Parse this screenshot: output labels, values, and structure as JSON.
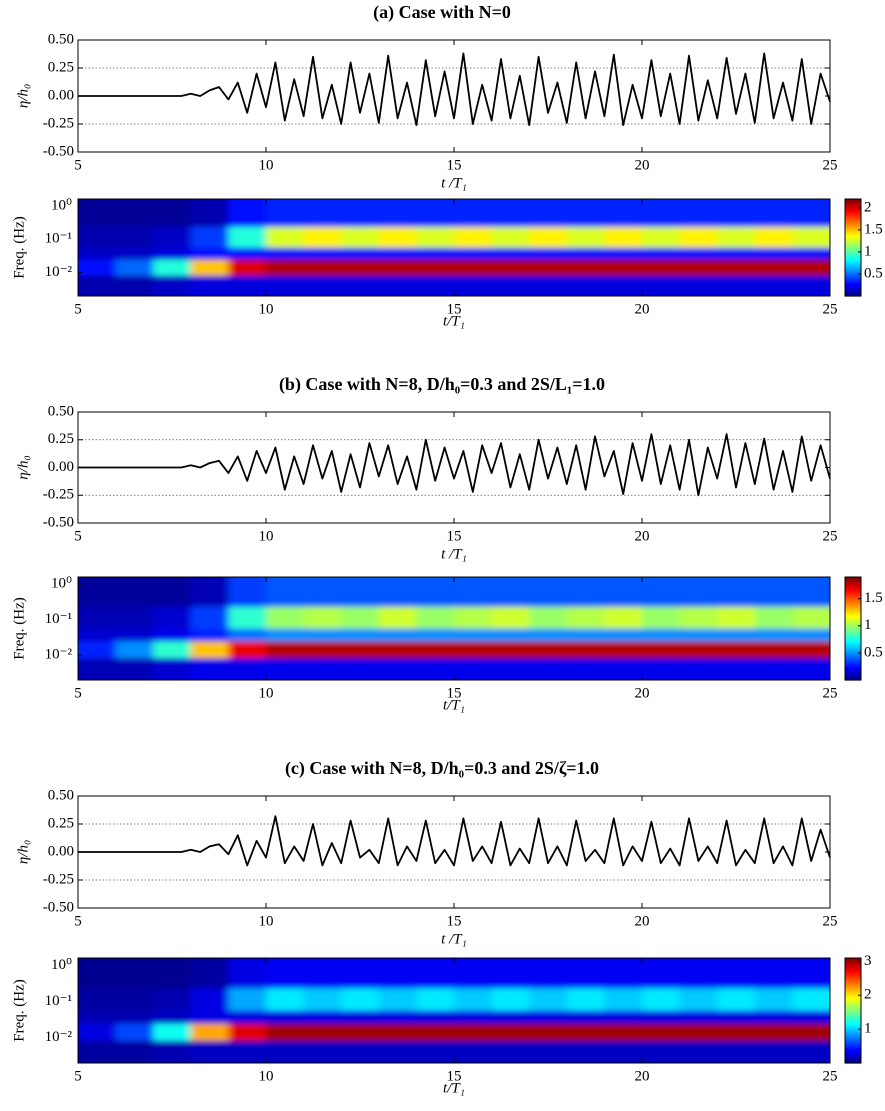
{
  "chart_data": [
    {
      "type": "line",
      "title": "(a)   Case with N=0",
      "ylabel": "η/h₀",
      "xlabel": "t /T₁",
      "color": "#000000",
      "x": [
        5,
        5.25,
        5.5,
        5.75,
        6,
        6.25,
        6.5,
        6.75,
        7,
        7.25,
        7.5,
        7.75,
        8,
        8.25,
        8.5,
        8.75,
        9,
        9.25,
        9.5,
        9.75,
        10,
        10.25,
        10.5,
        10.75,
        11,
        11.25,
        11.5,
        11.75,
        12,
        12.25,
        12.5,
        12.75,
        13,
        13.25,
        13.5,
        13.75,
        14,
        14.25,
        14.5,
        14.75,
        15,
        15.25,
        15.5,
        15.75,
        16,
        16.25,
        16.5,
        16.75,
        17,
        17.25,
        17.5,
        17.75,
        18,
        18.25,
        18.5,
        18.75,
        19,
        19.25,
        19.5,
        19.75,
        20,
        20.25,
        20.5,
        20.75,
        21,
        21.25,
        21.5,
        21.75,
        22,
        22.25,
        22.5,
        22.75,
        23,
        23.25,
        23.5,
        23.75,
        24,
        24.25,
        24.5,
        24.75,
        25
      ],
      "values": [
        0,
        0,
        0,
        0,
        0,
        0,
        0,
        0,
        0,
        0,
        0,
        0,
        0.02,
        0,
        0.05,
        0.08,
        -0.03,
        0.12,
        -0.15,
        0.2,
        -0.1,
        0.3,
        -0.22,
        0.15,
        -0.18,
        0.35,
        -0.2,
        0.1,
        -0.25,
        0.3,
        -0.15,
        0.2,
        -0.24,
        0.36,
        -0.2,
        0.12,
        -0.26,
        0.32,
        -0.18,
        0.22,
        -0.2,
        0.38,
        -0.25,
        0.1,
        -0.22,
        0.33,
        -0.2,
        0.18,
        -0.26,
        0.35,
        -0.15,
        0.12,
        -0.24,
        0.3,
        -0.2,
        0.22,
        -0.18,
        0.37,
        -0.26,
        0.1,
        -0.2,
        0.32,
        -0.18,
        0.2,
        -0.25,
        0.36,
        -0.22,
        0.14,
        -0.2,
        0.34,
        -0.16,
        0.2,
        -0.24,
        0.38,
        -0.2,
        0.12,
        -0.22,
        0.33,
        -0.25,
        0.2,
        -0.05
      ],
      "xlim": [
        5,
        25
      ],
      "xticks": [
        5,
        10,
        15,
        20,
        25
      ],
      "ylim": [
        -0.5,
        0.5
      ],
      "yticks": [
        {
          "value": 0.5,
          "label": "0.50"
        },
        {
          "value": 0.25,
          "label": "0.25"
        },
        {
          "value": 0,
          "label": "0.00"
        },
        {
          "value": -0.25,
          "label": "-0.25"
        },
        {
          "value": -0.5,
          "label": "-0.50"
        }
      ],
      "hlines": [
        0.25,
        -0.25
      ]
    },
    {
      "type": "heatmap",
      "ylabel": "Freq. (Hz)",
      "xlabel": "t/T₁",
      "colormap": "jet",
      "log_y": true,
      "x": [
        5.5,
        6.5,
        7.5,
        8.5,
        9.5,
        10.5,
        11.5,
        12.5,
        13.5,
        14.5,
        15.5,
        16.5,
        17.5,
        18.5,
        19.5,
        20.5,
        21.5,
        22.5,
        23.5,
        24.5
      ],
      "y": [
        0.6,
        0.09,
        0.035,
        0.017,
        0.004
      ],
      "values": [
        [
          0.05,
          0.05,
          0.05,
          0.1,
          0.3,
          0.35,
          0.35,
          0.35,
          0.35,
          0.35,
          0.35,
          0.35,
          0.35,
          0.35,
          0.35,
          0.35,
          0.35,
          0.35,
          0.35,
          0.35
        ],
        [
          0.1,
          0.1,
          0.15,
          0.4,
          0.9,
          1.3,
          1.4,
          1.3,
          1.4,
          1.3,
          1.4,
          1.3,
          1.4,
          1.3,
          1.4,
          1.3,
          1.4,
          1.3,
          1.4,
          1.3
        ],
        [
          0.15,
          0.15,
          0.2,
          0.3,
          0.3,
          0.3,
          0.3,
          0.3,
          0.3,
          0.3,
          0.3,
          0.3,
          0.3,
          0.3,
          0.3,
          0.3,
          0.3,
          0.3,
          0.3,
          0.3
        ],
        [
          0.3,
          0.5,
          0.9,
          1.5,
          2,
          2.1,
          2.1,
          2.1,
          2.1,
          2.1,
          2.1,
          2.1,
          2.1,
          2.1,
          2.1,
          2.1,
          2.1,
          2.1,
          2.1,
          2.1
        ],
        [
          0.1,
          0.1,
          0.15,
          0.2,
          0.2,
          0.2,
          0.2,
          0.2,
          0.2,
          0.2,
          0.2,
          0.2,
          0.2,
          0.2,
          0.2,
          0.2,
          0.2,
          0.2,
          0.2,
          0.2
        ]
      ],
      "xlim": [
        5,
        25
      ],
      "xticks": [
        5,
        10,
        15,
        20,
        25
      ],
      "ylim": [
        0.002,
        1.6
      ],
      "yticks": [
        {
          "value": 1,
          "label": "10⁰"
        },
        {
          "value": 0.1,
          "label": "10⁻¹"
        },
        {
          "value": 0.01,
          "label": "10⁻²"
        }
      ],
      "clim": [
        0,
        2.2
      ],
      "cticks": [
        0.5,
        1,
        1.5,
        2
      ]
    },
    {
      "type": "line",
      "title": "(b)   Case with N=8, D/h₀=0.3 and 2S/L₁=1.0",
      "ylabel": "η/h₀",
      "xlabel": "t /T₁",
      "color": "#000000",
      "x": [
        5,
        5.25,
        5.5,
        5.75,
        6,
        6.25,
        6.5,
        6.75,
        7,
        7.25,
        7.5,
        7.75,
        8,
        8.25,
        8.5,
        8.75,
        9,
        9.25,
        9.5,
        9.75,
        10,
        10.25,
        10.5,
        10.75,
        11,
        11.25,
        11.5,
        11.75,
        12,
        12.25,
        12.5,
        12.75,
        13,
        13.25,
        13.5,
        13.75,
        14,
        14.25,
        14.5,
        14.75,
        15,
        15.25,
        15.5,
        15.75,
        16,
        16.25,
        16.5,
        16.75,
        17,
        17.25,
        17.5,
        17.75,
        18,
        18.25,
        18.5,
        18.75,
        19,
        19.25,
        19.5,
        19.75,
        20,
        20.25,
        20.5,
        20.75,
        21,
        21.25,
        21.5,
        21.75,
        22,
        22.25,
        22.5,
        22.75,
        23,
        23.25,
        23.5,
        23.75,
        24,
        24.25,
        24.5,
        24.75,
        25
      ],
      "values": [
        0,
        0,
        0,
        0,
        0,
        0,
        0,
        0,
        0,
        0,
        0,
        0,
        0.02,
        0,
        0.04,
        0.06,
        -0.05,
        0.1,
        -0.12,
        0.15,
        -0.05,
        0.18,
        -0.2,
        0.1,
        -0.15,
        0.2,
        -0.1,
        0.15,
        -0.22,
        0.12,
        -0.18,
        0.22,
        -0.08,
        0.2,
        -0.15,
        0.1,
        -0.2,
        0.25,
        -0.12,
        0.18,
        -0.1,
        0.15,
        -0.22,
        0.2,
        -0.05,
        0.22,
        -0.18,
        0.12,
        -0.2,
        0.25,
        -0.1,
        0.18,
        -0.15,
        0.2,
        -0.2,
        0.28,
        -0.08,
        0.15,
        -0.24,
        0.22,
        -0.12,
        0.3,
        -0.15,
        0.2,
        -0.2,
        0.25,
        -0.25,
        0.18,
        -0.1,
        0.3,
        -0.18,
        0.22,
        -0.15,
        0.26,
        -0.2,
        0.15,
        -0.22,
        0.28,
        -0.12,
        0.2,
        -0.1
      ],
      "xlim": [
        5,
        25
      ],
      "xticks": [
        5,
        10,
        15,
        20,
        25
      ],
      "ylim": [
        -0.5,
        0.5
      ],
      "yticks": [
        {
          "value": 0.5,
          "label": "0.50"
        },
        {
          "value": 0.25,
          "label": "0.25"
        },
        {
          "value": 0,
          "label": "0.00"
        },
        {
          "value": -0.25,
          "label": "-0.25"
        },
        {
          "value": -0.5,
          "label": "-0.50"
        }
      ],
      "hlines": [
        0.25,
        -0.25
      ]
    },
    {
      "type": "heatmap",
      "ylabel": "Freq. (Hz)",
      "xlabel": "t/T₁",
      "colormap": "jet",
      "log_y": true,
      "x": [
        5.5,
        6.5,
        7.5,
        8.5,
        9.5,
        10.5,
        11.5,
        12.5,
        13.5,
        14.5,
        15.5,
        16.5,
        17.5,
        18.5,
        19.5,
        20.5,
        21.5,
        22.5,
        23.5,
        24.5
      ],
      "y": [
        0.6,
        0.09,
        0.035,
        0.017,
        0.004
      ],
      "values": [
        [
          0.05,
          0.05,
          0.05,
          0.1,
          0.35,
          0.4,
          0.4,
          0.4,
          0.4,
          0.4,
          0.4,
          0.4,
          0.4,
          0.4,
          0.4,
          0.4,
          0.4,
          0.4,
          0.4,
          0.4
        ],
        [
          0.1,
          0.1,
          0.15,
          0.35,
          0.8,
          1,
          1.05,
          1,
          1.1,
          1,
          1.05,
          1.1,
          1,
          1.05,
          1.1,
          1,
          1.05,
          1.1,
          1,
          1.05
        ],
        [
          0.15,
          0.15,
          0.2,
          0.3,
          0.45,
          0.5,
          0.5,
          0.5,
          0.5,
          0.5,
          0.5,
          0.5,
          0.5,
          0.5,
          0.5,
          0.5,
          0.5,
          0.5,
          0.5,
          0.5
        ],
        [
          0.3,
          0.5,
          0.8,
          1.3,
          1.7,
          1.8,
          1.8,
          1.8,
          1.8,
          1.8,
          1.8,
          1.8,
          1.8,
          1.8,
          1.8,
          1.8,
          1.8,
          1.8,
          1.8,
          1.8
        ],
        [
          0.1,
          0.1,
          0.15,
          0.2,
          0.2,
          0.2,
          0.2,
          0.2,
          0.2,
          0.2,
          0.2,
          0.2,
          0.2,
          0.2,
          0.2,
          0.2,
          0.2,
          0.2,
          0.2,
          0.2
        ]
      ],
      "xlim": [
        5,
        25
      ],
      "xticks": [
        5,
        10,
        15,
        20,
        25
      ],
      "ylim": [
        0.002,
        1.6
      ],
      "yticks": [
        {
          "value": 1,
          "label": "10⁰"
        },
        {
          "value": 0.1,
          "label": "10⁻¹"
        },
        {
          "value": 0.01,
          "label": "10⁻²"
        }
      ],
      "clim": [
        0,
        1.9
      ],
      "cticks": [
        0.5,
        1,
        1.5
      ]
    },
    {
      "type": "line",
      "title": "(c)   Case with N=8, D/h₀=0.3 and 2S/ζ=1.0",
      "ylabel": "η/h₀",
      "xlabel": "t /T₁",
      "color": "#000000",
      "x": [
        5,
        5.25,
        5.5,
        5.75,
        6,
        6.25,
        6.5,
        6.75,
        7,
        7.25,
        7.5,
        7.75,
        8,
        8.25,
        8.5,
        8.75,
        9,
        9.25,
        9.5,
        9.75,
        10,
        10.25,
        10.5,
        10.75,
        11,
        11.25,
        11.5,
        11.75,
        12,
        12.25,
        12.5,
        12.75,
        13,
        13.25,
        13.5,
        13.75,
        14,
        14.25,
        14.5,
        14.75,
        15,
        15.25,
        15.5,
        15.75,
        16,
        16.25,
        16.5,
        16.75,
        17,
        17.25,
        17.5,
        17.75,
        18,
        18.25,
        18.5,
        18.75,
        19,
        19.25,
        19.5,
        19.75,
        20,
        20.25,
        20.5,
        20.75,
        21,
        21.25,
        21.5,
        21.75,
        22,
        22.25,
        22.5,
        22.75,
        23,
        23.25,
        23.5,
        23.75,
        24,
        24.25,
        24.5,
        24.75,
        25
      ],
      "values": [
        0,
        0,
        0,
        0,
        0,
        0,
        0,
        0,
        0,
        0,
        0,
        0,
        0.02,
        0,
        0.05,
        0.07,
        -0.02,
        0.15,
        -0.12,
        0.1,
        -0.05,
        0.32,
        -0.1,
        0.05,
        -0.08,
        0.25,
        -0.12,
        0.08,
        -0.1,
        0.28,
        -0.05,
        0.02,
        -0.1,
        0.3,
        -0.12,
        0.05,
        -0.08,
        0.28,
        -0.1,
        0.02,
        -0.12,
        0.3,
        -0.08,
        0.05,
        -0.1,
        0.27,
        -0.12,
        0.03,
        -0.1,
        0.3,
        -0.1,
        0.05,
        -0.12,
        0.28,
        -0.08,
        0.02,
        -0.1,
        0.3,
        -0.12,
        0.05,
        -0.08,
        0.27,
        -0.1,
        0.03,
        -0.12,
        0.3,
        -0.08,
        0.05,
        -0.1,
        0.28,
        -0.12,
        0.02,
        -0.1,
        0.3,
        -0.1,
        0.05,
        -0.12,
        0.3,
        -0.08,
        0.2,
        -0.05
      ],
      "xlim": [
        5,
        25
      ],
      "xticks": [
        5,
        10,
        15,
        20,
        25
      ],
      "ylim": [
        -0.5,
        0.5
      ],
      "yticks": [
        {
          "value": 0.5,
          "label": "0.50"
        },
        {
          "value": 0.25,
          "label": "0.25"
        },
        {
          "value": 0,
          "label": "0.00"
        },
        {
          "value": -0.25,
          "label": "-0.25"
        },
        {
          "value": -0.5,
          "label": "-0.50"
        }
      ],
      "hlines": [
        0.25,
        -0.25
      ]
    },
    {
      "type": "heatmap",
      "ylabel": "Freq. (Hz)",
      "xlabel": "t/T₁",
      "colormap": "jet",
      "log_y": true,
      "x": [
        5.5,
        6.5,
        7.5,
        8.5,
        9.5,
        10.5,
        11.5,
        12.5,
        13.5,
        14.5,
        15.5,
        16.5,
        17.5,
        18.5,
        19.5,
        20.5,
        21.5,
        22.5,
        23.5,
        24.5
      ],
      "y": [
        0.6,
        0.09,
        0.035,
        0.017,
        0.004
      ],
      "values": [
        [
          0.05,
          0.05,
          0.05,
          0.1,
          0.3,
          0.35,
          0.35,
          0.35,
          0.35,
          0.35,
          0.35,
          0.35,
          0.35,
          0.35,
          0.35,
          0.35,
          0.35,
          0.35,
          0.35,
          0.35
        ],
        [
          0.1,
          0.1,
          0.15,
          0.3,
          0.9,
          1.1,
          1,
          1.1,
          1,
          1.1,
          1,
          1.1,
          1,
          1.1,
          1,
          1.1,
          1,
          1.1,
          1,
          1.1
        ],
        [
          0.15,
          0.15,
          0.2,
          0.3,
          0.3,
          0.3,
          0.3,
          0.3,
          0.3,
          0.3,
          0.3,
          0.3,
          0.3,
          0.3,
          0.3,
          0.3,
          0.3,
          0.3,
          0.3,
          0.3
        ],
        [
          0.3,
          0.6,
          1.2,
          2.2,
          2.8,
          3,
          3,
          3,
          3,
          3,
          3,
          3,
          3,
          3,
          3,
          3,
          3,
          3,
          3,
          3
        ],
        [
          0.1,
          0.1,
          0.15,
          0.2,
          0.2,
          0.2,
          0.2,
          0.2,
          0.2,
          0.2,
          0.2,
          0.2,
          0.2,
          0.2,
          0.2,
          0.2,
          0.2,
          0.2,
          0.2,
          0.2
        ]
      ],
      "xlim": [
        5,
        25
      ],
      "xticks": [
        5,
        10,
        15,
        20,
        25
      ],
      "ylim": [
        0.002,
        1.6
      ],
      "yticks": [
        {
          "value": 1,
          "label": "10⁰"
        },
        {
          "value": 0.1,
          "label": "10⁻¹"
        },
        {
          "value": 0.01,
          "label": "10⁻²"
        }
      ],
      "clim": [
        0,
        3.1
      ],
      "cticks": [
        1,
        2,
        3
      ]
    }
  ]
}
